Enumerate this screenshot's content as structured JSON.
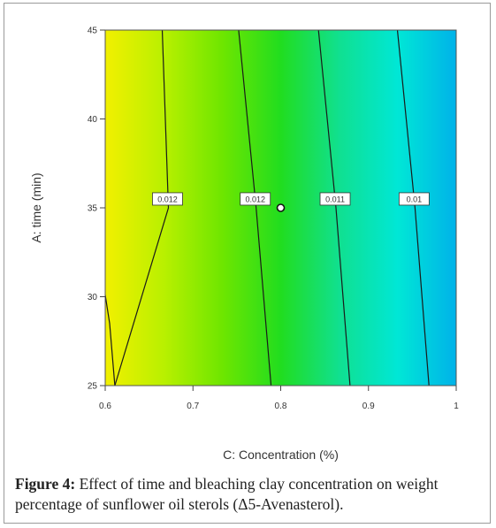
{
  "chart_data": {
    "type": "contour",
    "xlabel": "C: Concentration (%)",
    "ylabel": "A: time (min)",
    "xlim": [
      0.6,
      1
    ],
    "ylim": [
      25,
      45
    ],
    "x_ticks": [
      "0.6",
      "0.7",
      "0.8",
      "0.9",
      "1"
    ],
    "y_ticks": [
      "25",
      "30",
      "35",
      "40",
      "45"
    ],
    "contours": [
      {
        "label": "0.012",
        "label_position": [
          0.671,
          35.5
        ],
        "path": [
          [
            0.611,
            25
          ],
          [
            0.672,
            35
          ],
          [
            0.665,
            45
          ]
        ]
      },
      {
        "label": "0.012",
        "label_position": [
          0.771,
          35.5
        ],
        "path": [
          [
            0.789,
            25
          ],
          [
            0.772,
            35
          ],
          [
            0.752,
            45
          ]
        ]
      },
      {
        "label": "0.011",
        "label_position": [
          0.862,
          35.5
        ],
        "path": [
          [
            0.879,
            25
          ],
          [
            0.863,
            35
          ],
          [
            0.843,
            45
          ]
        ]
      },
      {
        "label": "0.01",
        "label_position": [
          0.952,
          35.5
        ],
        "path": [
          [
            0.969,
            25
          ],
          [
            0.953,
            35
          ],
          [
            0.933,
            45
          ]
        ]
      }
    ],
    "edge_contour": {
      "path": [
        [
          0.6,
          30.1
        ],
        [
          0.605,
          28.5
        ],
        [
          0.611,
          25
        ]
      ]
    },
    "design_point": {
      "x": 0.8,
      "y": 35.0
    },
    "colors": [
      "#f2f000",
      "#b9f000",
      "#6ee600",
      "#21dd1f",
      "#10e090",
      "#00e7d6",
      "#00b2e9"
    ],
    "grid": false
  },
  "caption": {
    "label": "Figure 4:",
    "text": "Effect of time and bleaching clay concentration on weight percentage of sunflower oil sterols (Δ5-Avenasterol)."
  }
}
